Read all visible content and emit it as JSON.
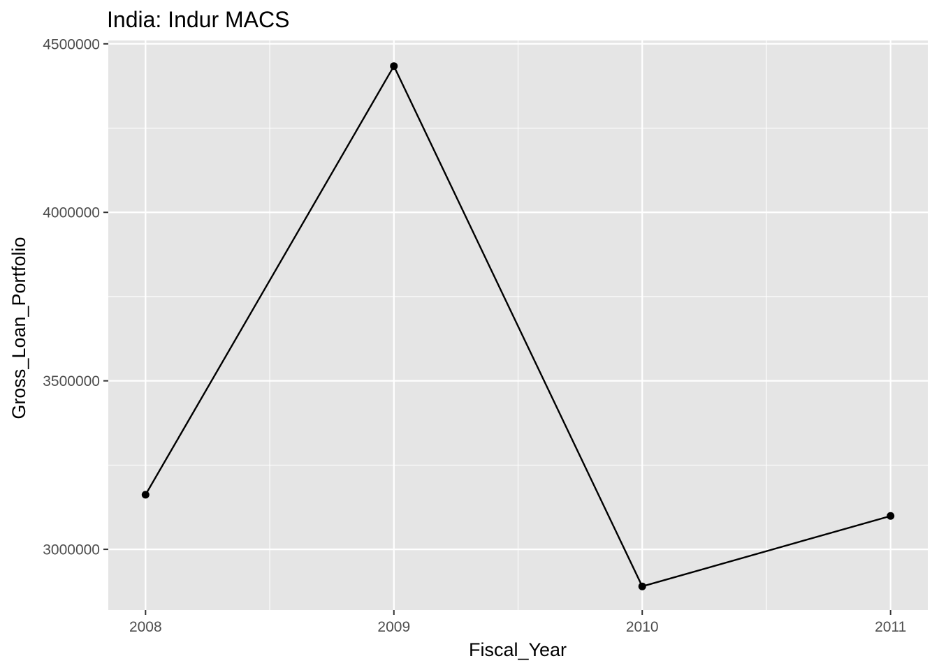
{
  "chart_data": {
    "type": "line",
    "title": "India:  Indur MACS",
    "xlabel": "Fiscal_Year",
    "ylabel": "Gross_Loan_Portfolio",
    "x": [
      2008,
      2009,
      2010,
      2011
    ],
    "y_ticks": [
      3000000,
      3500000,
      4000000,
      4500000
    ],
    "x_ticks": [
      2008,
      2009,
      2010,
      2011
    ],
    "series": [
      {
        "values": [
          3162000,
          4434000,
          2890000,
          3099000
        ]
      }
    ],
    "xlim": [
      2007.85,
      2011.15
    ],
    "ylim": [
      2820000,
      4510000
    ],
    "grid": true,
    "legend": "none",
    "colors": {
      "panel": "#e5e5e5",
      "grid": "#ffffff",
      "line": "#000000",
      "tick_text": "#4d4d4d",
      "tick_mark": "#333333"
    }
  }
}
